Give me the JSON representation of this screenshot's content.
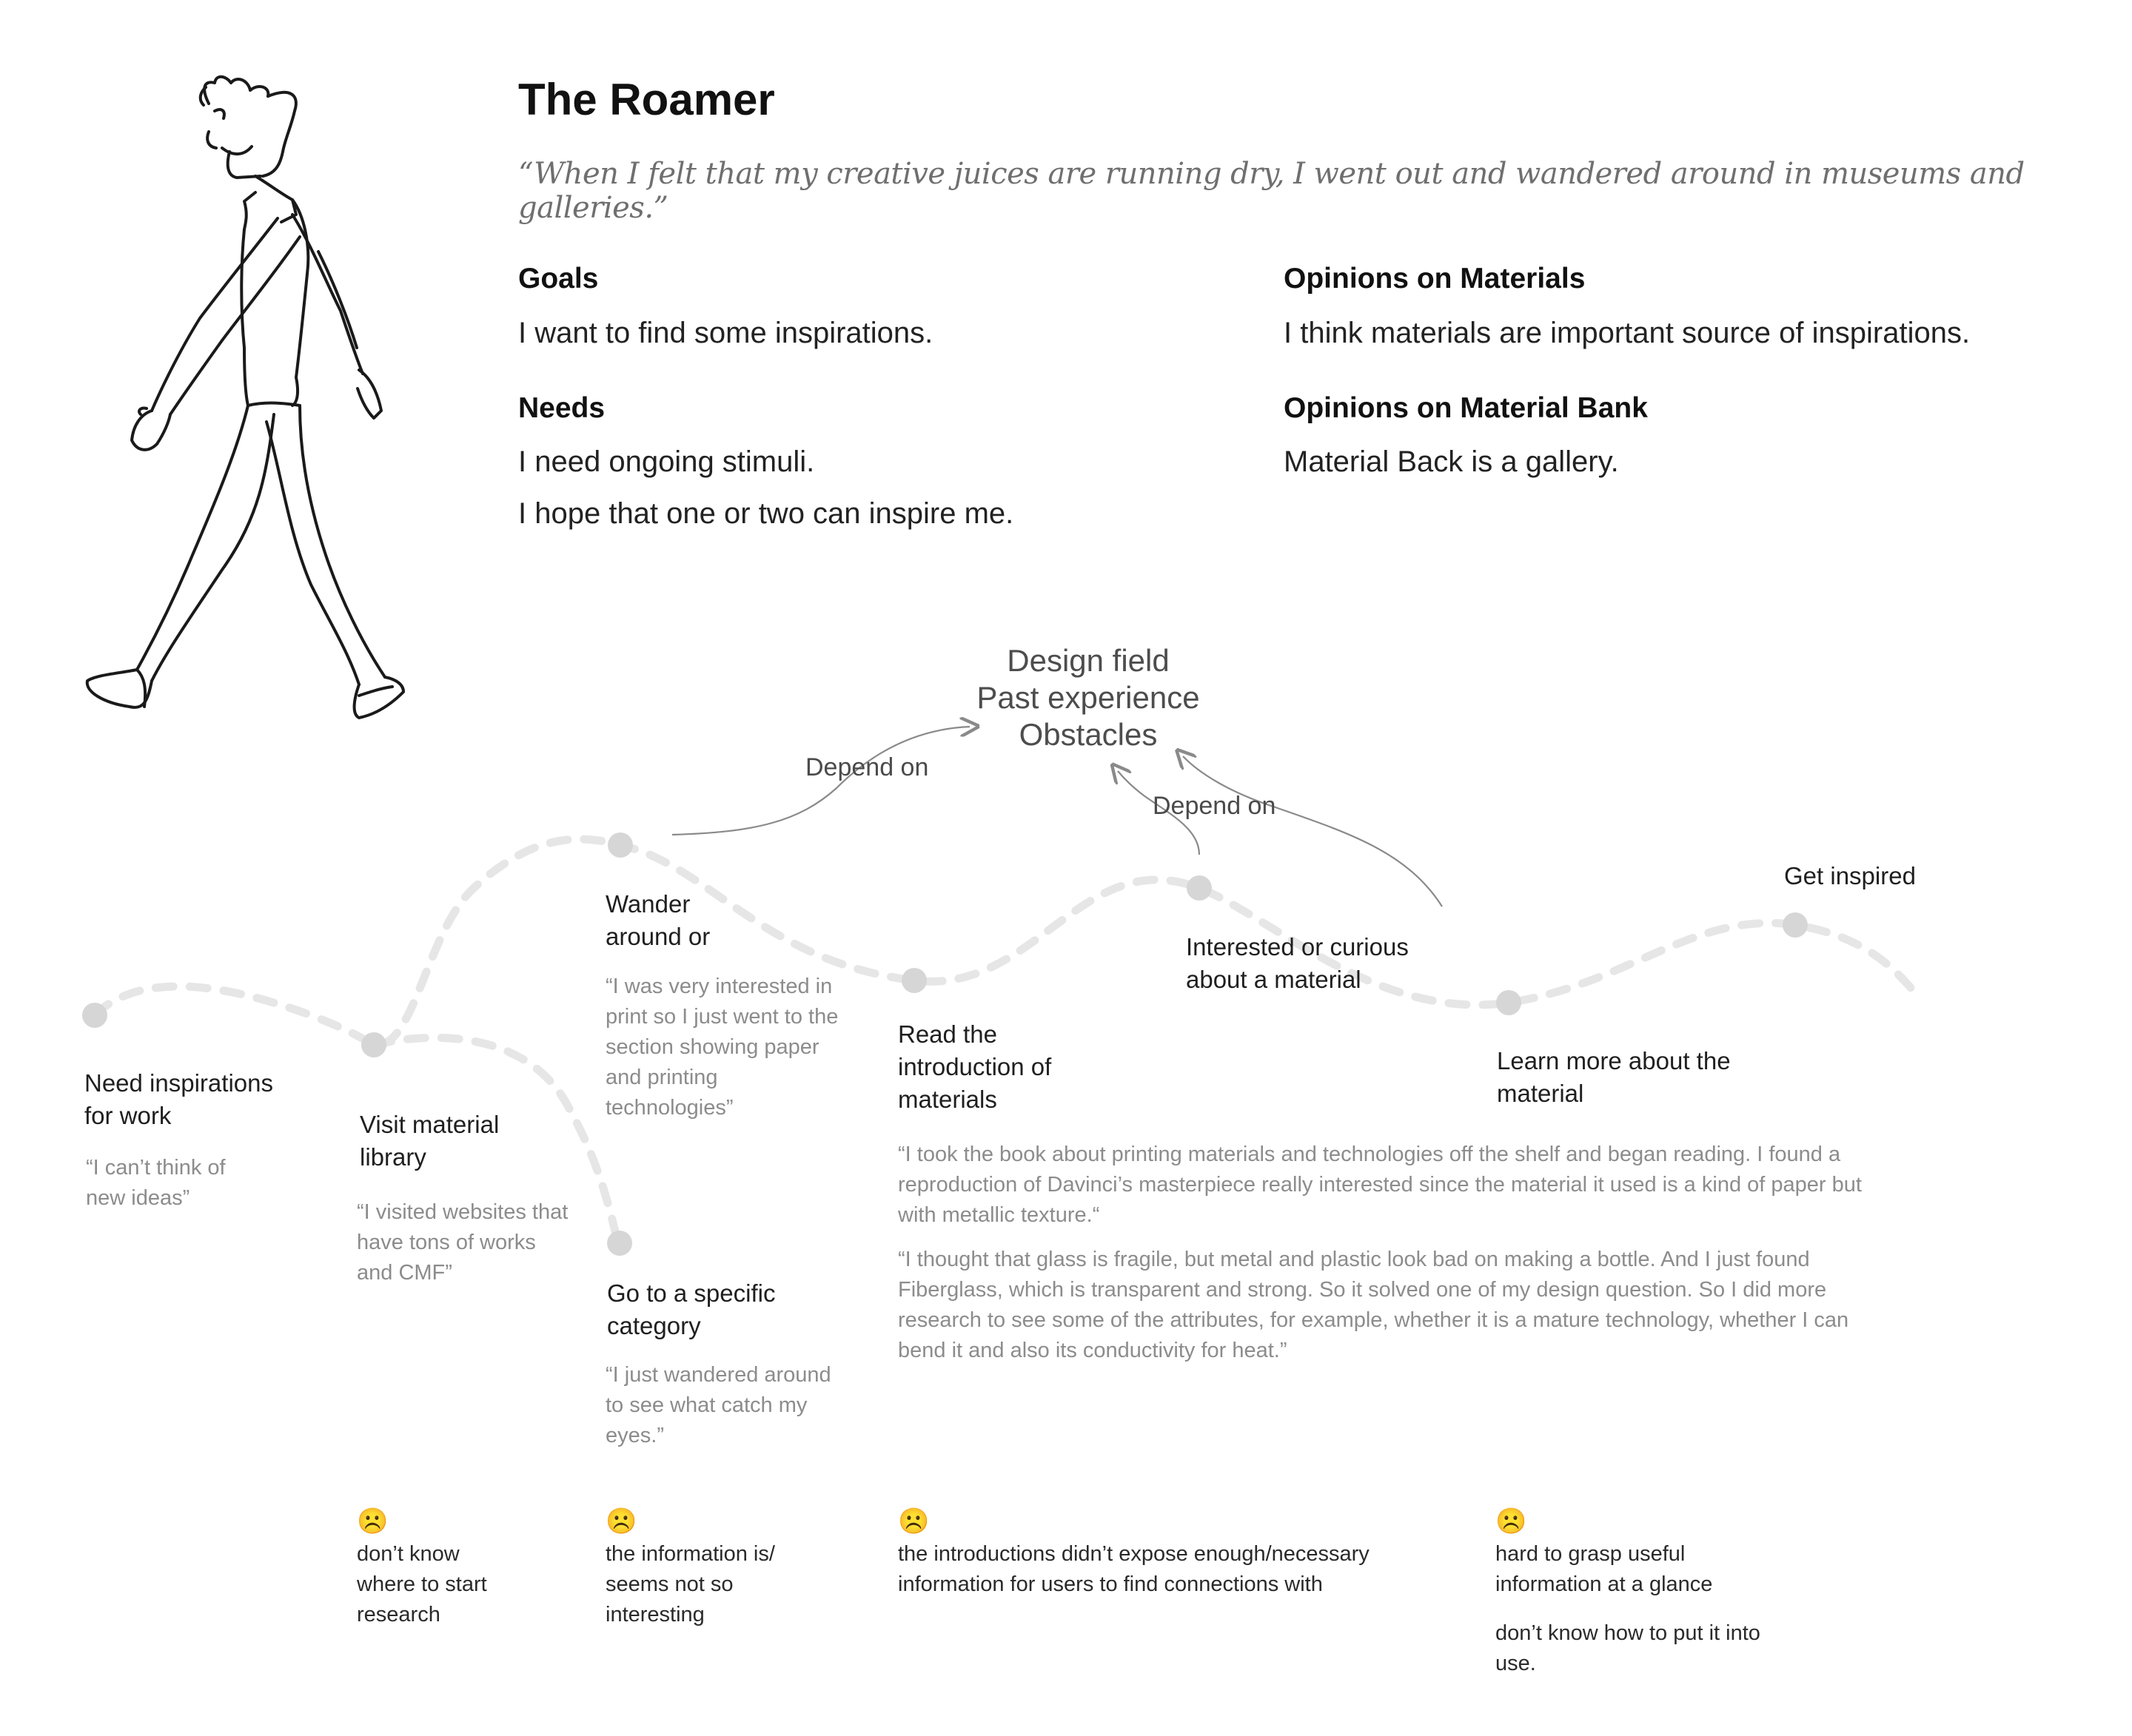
{
  "persona": {
    "name": "The Roamer",
    "quote": "“When I felt that my creative juices are running dry, I went out and wandered around in museums and galleries.”",
    "goals_heading": "Goals",
    "goals": "I want to find some inspirations.",
    "needs_heading": "Needs",
    "needs": [
      "I need ongoing stimuli.",
      "I hope that one or two can inspire me."
    ],
    "opinions_materials_heading": "Opinions on Materials",
    "opinions_materials": "I think materials are important source of inspirations.",
    "opinions_bank_heading": "Opinions on Material Bank",
    "opinions_bank": "Material Back is a gallery."
  },
  "factors": [
    "Design field",
    "Past experience",
    "Obstacles"
  ],
  "depend_labels": [
    "Depend on",
    "Depend on"
  ],
  "steps": [
    {
      "label": [
        "Need inspirations",
        "for work"
      ],
      "quote": [
        "“I can’t think of",
        "new ideas”"
      ]
    },
    {
      "label": [
        "Visit material",
        "library"
      ],
      "quote": [
        "“I visited websites that",
        "have tons of works",
        "and CMF”"
      ]
    },
    {
      "label": [
        "Wander",
        "around or"
      ],
      "quote": [
        "“I was very interested in",
        "print so I just went to the",
        "section showing paper",
        "and printing",
        "technologies”"
      ]
    },
    {
      "label": [
        "Go to a specific",
        "category"
      ],
      "quote": [
        "“I just wandered around",
        "to see what catch my",
        "eyes.”"
      ]
    },
    {
      "label": [
        "Read the",
        "introduction of",
        "materials"
      ],
      "quote": []
    },
    {
      "label": [
        "Interested or curious",
        "about a material"
      ],
      "quote": []
    },
    {
      "label": [
        "Learn more about the",
        "material"
      ],
      "quote": []
    },
    {
      "label": [
        "Get inspired"
      ],
      "quote": []
    }
  ],
  "long_quotes": [
    [
      "“I took the book about printing materials and technologies off the shelf and began reading. I found a",
      "reproduction of Davinci’s masterpiece really interested since the material it used is a kind of paper but",
      "with metallic texture.“"
    ],
    [
      "“I thought that glass is fragile, but metal and plastic look bad on making a bottle. And I just found",
      "Fiberglass, which is transparent and strong. So it solved one of my design question. So I did more",
      "research to see some of the attributes, for example, whether it is a mature technology, whether I can",
      "bend it and also its conductivity for heat.”"
    ]
  ],
  "pain_points": [
    {
      "emoji": "☹️",
      "text": [
        "don’t know",
        "where to start",
        "research"
      ]
    },
    {
      "emoji": "☹️",
      "text": [
        "the information is/",
        "seems not so",
        "interesting"
      ]
    },
    {
      "emoji": "☹️",
      "text": [
        "the introductions didn’t expose enough/necessary",
        "information for users to find connections with"
      ]
    },
    {
      "emoji": "☹️",
      "text": [
        "hard to grasp useful",
        "information at a glance"
      ],
      "extra": [
        "don’t know how to put it into",
        "use."
      ]
    }
  ],
  "colors": {
    "path": "#e6e6e6",
    "node": "#d6d6d6",
    "arrow": "#8a8a8a",
    "quote": "#8c8c8c"
  }
}
